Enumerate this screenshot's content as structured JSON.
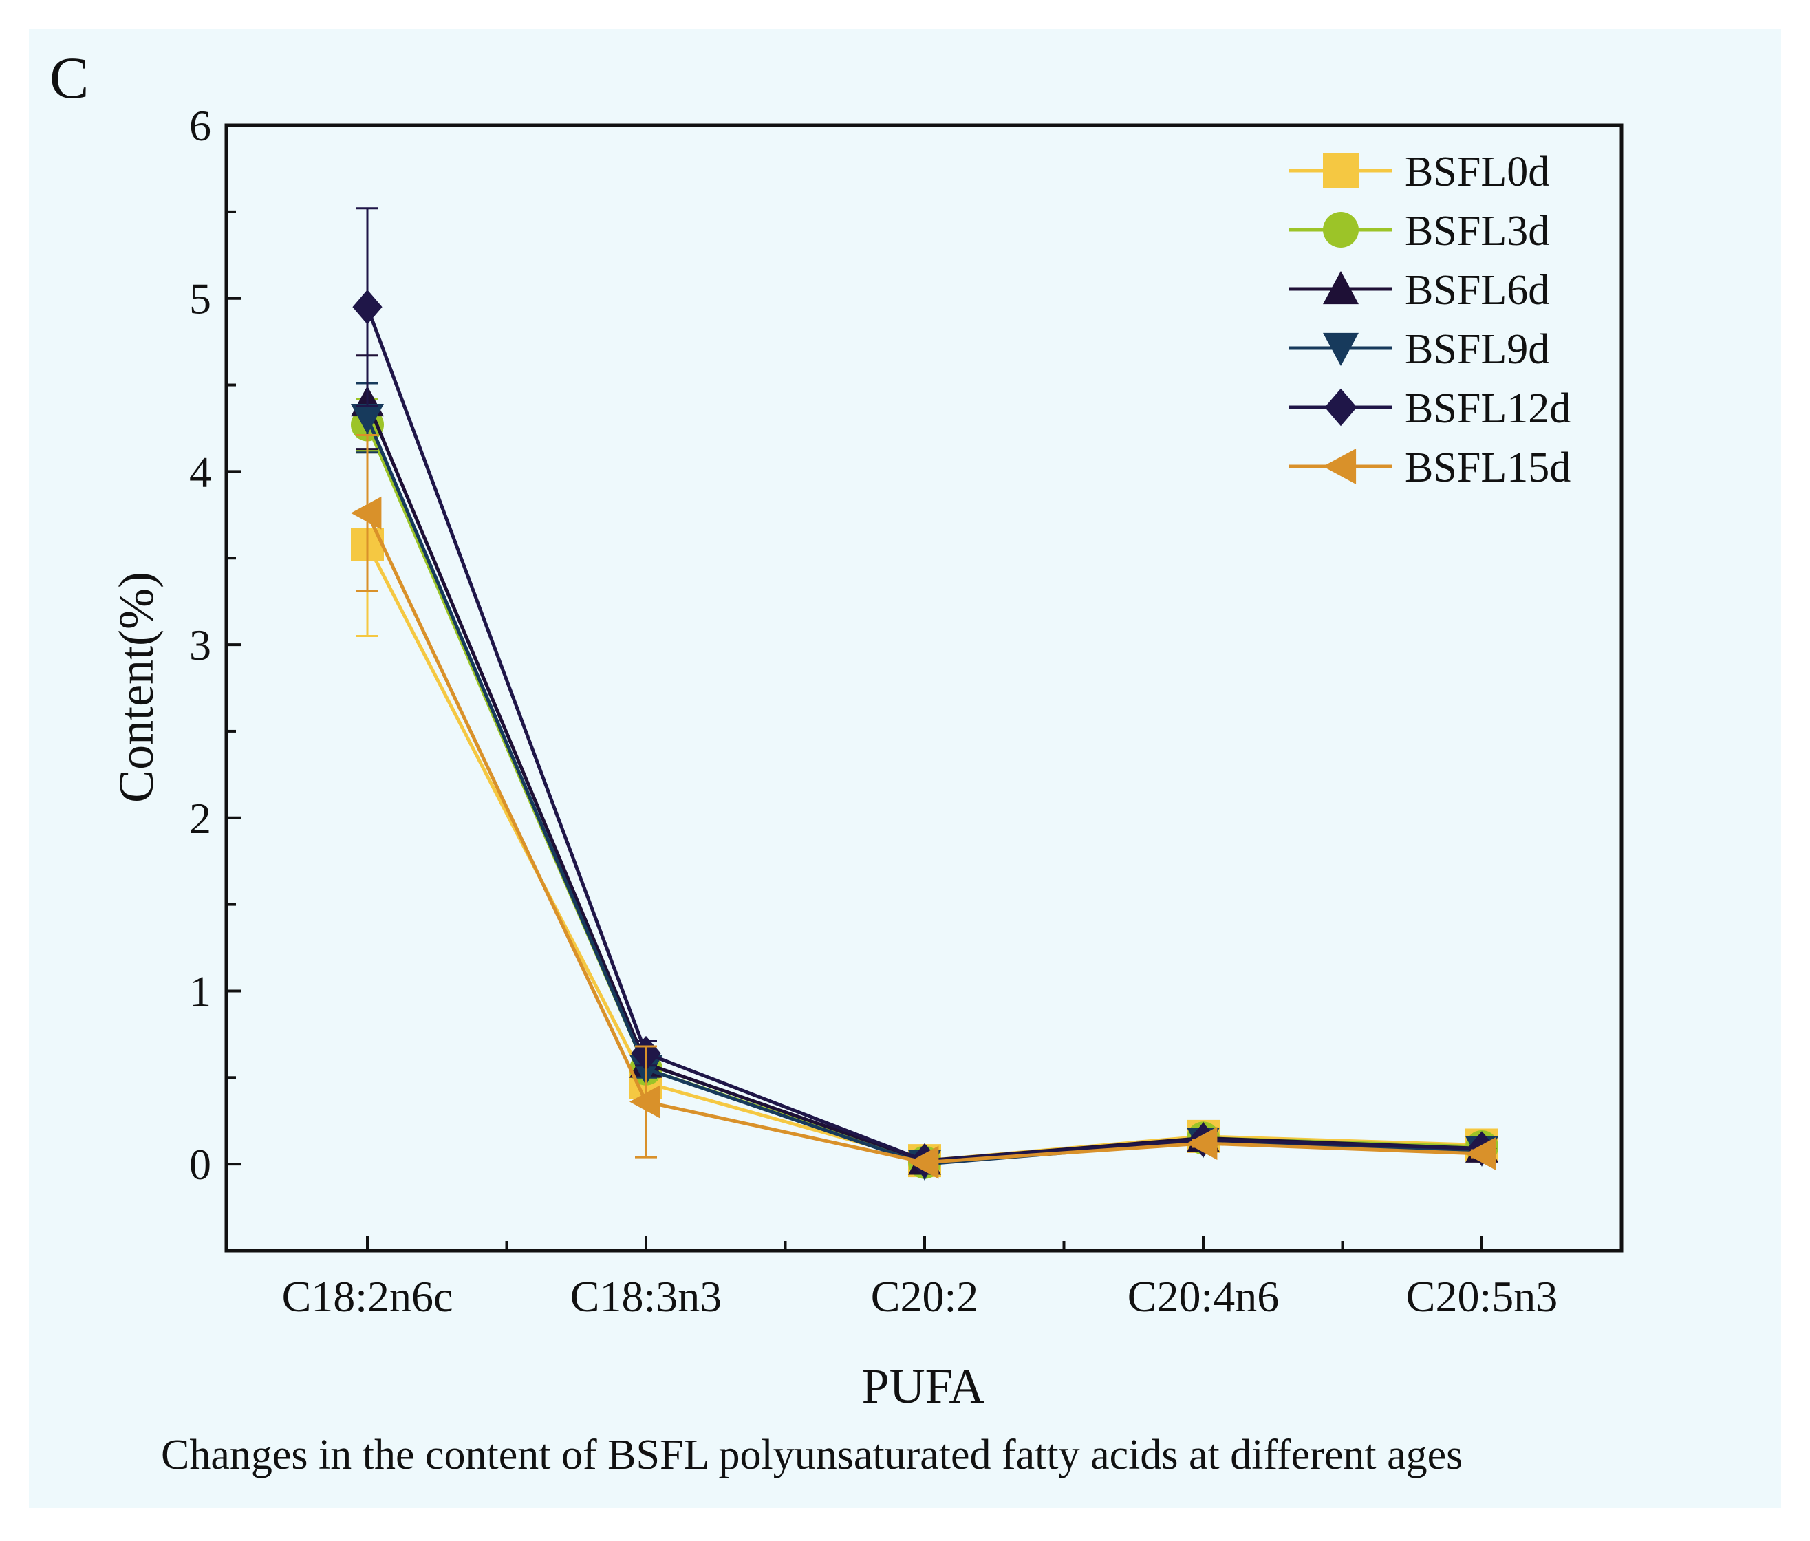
{
  "panel_letter": "C",
  "caption": "Changes in the content of BSFL polyunsaturated fatty acids at different ages",
  "chart_data": {
    "type": "line",
    "title": "",
    "xlabel": "PUFA",
    "ylabel": "Content(%)",
    "categories": [
      "C18:2n6c",
      "C18:3n3",
      "C20:2",
      "C20:4n6",
      "C20:5n3"
    ],
    "ylim": [
      -0.5,
      6
    ],
    "yticks": [
      "0",
      "1",
      "2",
      "3",
      "4",
      "5",
      "6"
    ],
    "legend_position": "top-right",
    "grid": false,
    "series": [
      {
        "name": "BSFL0d",
        "color": "#f5c842",
        "marker": "square",
        "values": [
          3.58,
          0.47,
          0.02,
          0.16,
          0.11
        ],
        "errors": [
          0.53,
          0.12,
          0.01,
          0.02,
          0.02
        ]
      },
      {
        "name": "BSFL3d",
        "color": "#9cc428",
        "marker": "circle",
        "values": [
          4.27,
          0.55,
          0.01,
          0.15,
          0.1
        ],
        "errors": [
          0.15,
          0.05,
          0.01,
          0.02,
          0.02
        ]
      },
      {
        "name": "BSFL6d",
        "color": "#1e1036",
        "marker": "triangle-up",
        "values": [
          4.4,
          0.58,
          0.02,
          0.15,
          0.09
        ],
        "errors": [
          0.27,
          0.06,
          0.01,
          0.02,
          0.02
        ]
      },
      {
        "name": "BSFL9d",
        "color": "#173a5c",
        "marker": "triangle-down",
        "values": [
          4.31,
          0.55,
          0.0,
          0.13,
          0.08
        ],
        "errors": [
          0.2,
          0.05,
          0.01,
          0.02,
          0.02
        ]
      },
      {
        "name": "BSFL12d",
        "color": "#1f1648",
        "marker": "diamond",
        "values": [
          4.95,
          0.64,
          0.02,
          0.14,
          0.09
        ],
        "errors": [
          0.57,
          0.07,
          0.01,
          0.02,
          0.02
        ]
      },
      {
        "name": "BSFL15d",
        "color": "#d9912a",
        "marker": "triangle-left",
        "values": [
          3.76,
          0.36,
          0.01,
          0.12,
          0.06
        ],
        "errors": [
          0.45,
          0.32,
          0.01,
          0.02,
          0.02
        ]
      }
    ]
  }
}
